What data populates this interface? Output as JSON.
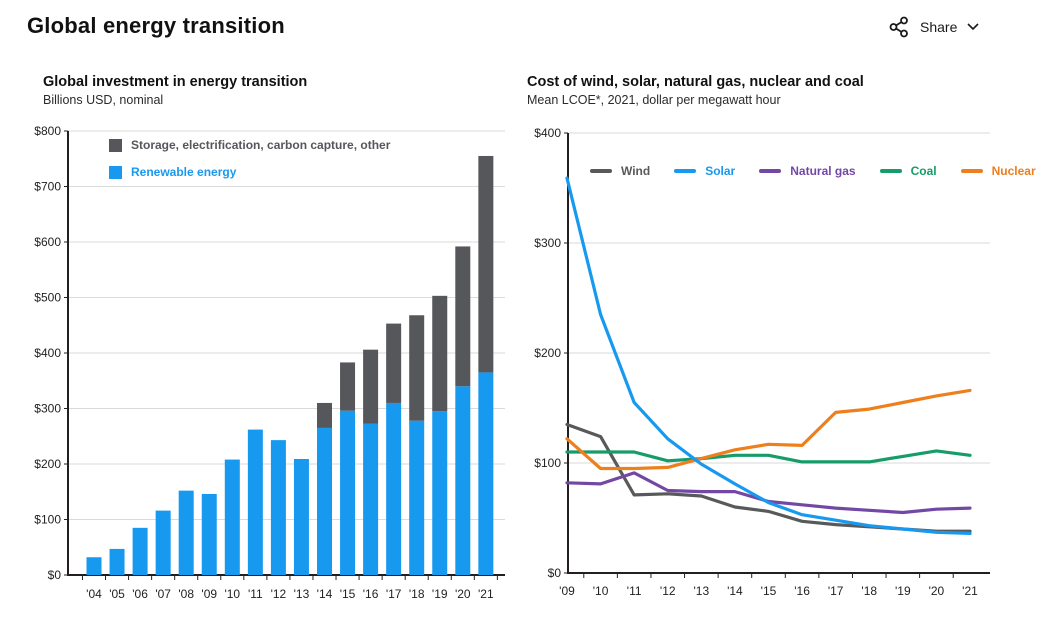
{
  "header": {
    "title": "Global energy transition",
    "share_label": "Share"
  },
  "icons": {
    "share": "share-nodes",
    "share_expand": "chevron-down"
  },
  "chart_data": [
    {
      "type": "bar",
      "stacked": true,
      "title": "Global investment in energy transition",
      "subtitle": "Billions USD, nominal",
      "categories": [
        "'04",
        "'05",
        "'06",
        "'07",
        "'08",
        "'09",
        "'10",
        "'11",
        "'12",
        "'13",
        "'14",
        "'15",
        "'16",
        "'17",
        "'18",
        "'19",
        "'20",
        "'21"
      ],
      "series": [
        {
          "name": "Renewable energy",
          "color": "#1899f0",
          "values": [
            32,
            47,
            85,
            116,
            152,
            146,
            208,
            262,
            243,
            209,
            265,
            296,
            273,
            310,
            278,
            295,
            340,
            365
          ]
        },
        {
          "name": "Storage, electrification, carbon capture, other",
          "color": "#55575b",
          "values": [
            0,
            0,
            0,
            0,
            0,
            0,
            0,
            0,
            0,
            0,
            45,
            87,
            133,
            143,
            190,
            208,
            252,
            390
          ]
        }
      ],
      "legend_order": [
        1,
        0
      ],
      "xlabel": "",
      "ylabel": "",
      "ylim": [
        0,
        800
      ],
      "ytick_step": 100,
      "yprefix": "$",
      "grid": true,
      "legend_position": "top-left-inside"
    },
    {
      "type": "line",
      "title": "Cost of wind, solar, natural gas, nuclear and coal",
      "subtitle": "Mean LCOE*, 2021, dollar per megawatt hour",
      "x": [
        "'09",
        "'10",
        "'11",
        "'12",
        "'13",
        "'14",
        "'15",
        "'16",
        "'17",
        "'18",
        "'19",
        "'20",
        "'21"
      ],
      "series": [
        {
          "name": "Wind",
          "color": "#58595b",
          "values": [
            135,
            124,
            71,
            72,
            70,
            60,
            56,
            47,
            44,
            42,
            40,
            38,
            38
          ]
        },
        {
          "name": "Solar",
          "color": "#1899f0",
          "values": [
            359,
            235,
            155,
            122,
            99,
            81,
            64,
            53,
            48,
            43,
            40,
            37,
            36
          ]
        },
        {
          "name": "Natural gas",
          "color": "#7348a5",
          "values": [
            82,
            81,
            91,
            75,
            74,
            74,
            65,
            62,
            59,
            57,
            55,
            58,
            59
          ]
        },
        {
          "name": "Coal",
          "color": "#169c69",
          "values": [
            110,
            110,
            110,
            102,
            104,
            107,
            107,
            101,
            101,
            101,
            106,
            111,
            107
          ]
        },
        {
          "name": "Nuclear",
          "color": "#ee7f1d",
          "values": [
            122,
            95,
            95,
            96,
            104,
            112,
            117,
            116,
            146,
            149,
            155,
            161,
            166
          ]
        }
      ],
      "xlabel": "",
      "ylabel": "",
      "ylim": [
        0,
        400
      ],
      "ytick_step": 100,
      "yprefix": "$",
      "grid": true,
      "legend_position": "top-inside"
    }
  ]
}
